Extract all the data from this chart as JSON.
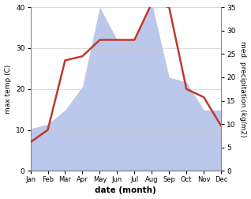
{
  "months": [
    "Jan",
    "Feb",
    "Mar",
    "Apr",
    "May",
    "Jun",
    "Jul",
    "Aug",
    "Sep",
    "Oct",
    "Nov",
    "Dec"
  ],
  "temp": [
    7,
    10,
    27,
    28,
    32,
    32,
    32,
    41,
    40,
    20,
    18,
    11
  ],
  "precip": [
    9,
    10,
    13,
    18,
    35,
    28,
    28,
    36,
    20,
    19,
    13,
    13
  ],
  "temp_color": "#c0392b",
  "precip_color": "#b0bee8",
  "temp_ylim": [
    0,
    40
  ],
  "precip_ylim": [
    0,
    35
  ],
  "xlabel": "date (month)",
  "ylabel_left": "max temp (C)",
  "ylabel_right": "med. precipitation (kg/m2)",
  "temp_yticks": [
    0,
    10,
    20,
    30,
    40
  ],
  "precip_yticks": [
    0,
    5,
    10,
    15,
    20,
    25,
    30,
    35
  ],
  "bg_color": "#ffffff",
  "line_width": 1.8,
  "grid_color": "#cccccc"
}
